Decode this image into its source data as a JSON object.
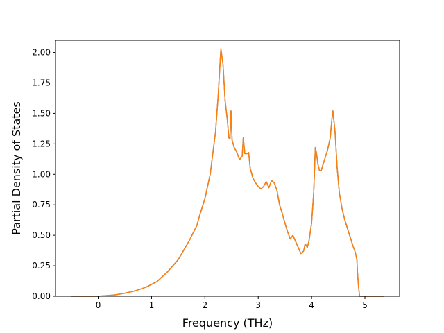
{
  "chart_data": {
    "type": "line",
    "title": "",
    "xlabel": "Frequency (THz)",
    "ylabel": "Partial Density of States",
    "xlim": [
      -0.8,
      5.65
    ],
    "ylim": [
      0,
      2.1
    ],
    "x_ticks": [
      0,
      1,
      2,
      3,
      4,
      5
    ],
    "x_tick_labels": [
      "0",
      "1",
      "2",
      "3",
      "4",
      "5"
    ],
    "y_ticks": [
      0,
      0.25,
      0.5,
      0.75,
      1.0,
      1.25,
      1.5,
      1.75,
      2.0
    ],
    "y_tick_labels": [
      "0.00",
      "0.25",
      "0.50",
      "0.75",
      "1.00",
      "1.25",
      "1.50",
      "1.75",
      "2.00"
    ],
    "grid": false,
    "legend": "none",
    "series": [
      {
        "color": "#1f77b4",
        "x": [
          -0.5,
          0.0,
          0.3,
          0.5,
          0.7,
          0.9,
          1.1,
          1.3,
          1.5,
          1.7,
          1.85,
          1.9,
          2.0,
          2.1,
          2.2,
          2.25,
          2.3,
          2.34,
          2.38,
          2.42,
          2.45,
          2.47,
          2.49,
          2.51,
          2.55,
          2.6,
          2.65,
          2.7,
          2.72,
          2.75,
          2.8,
          2.82,
          2.85,
          2.9,
          2.95,
          3.0,
          3.05,
          3.1,
          3.15,
          3.2,
          3.25,
          3.3,
          3.35,
          3.4,
          3.45,
          3.5,
          3.55,
          3.6,
          3.65,
          3.7,
          3.75,
          3.8,
          3.85,
          3.88,
          3.92,
          3.95,
          4.0,
          4.04,
          4.07,
          4.09,
          4.12,
          4.15,
          4.18,
          4.2,
          4.25,
          4.3,
          4.35,
          4.38,
          4.4,
          4.44,
          4.48,
          4.52,
          4.57,
          4.62,
          4.67,
          4.72,
          4.77,
          4.82,
          4.85,
          4.86,
          4.88,
          4.9,
          5.0,
          5.2,
          5.35
        ],
        "y": [
          0,
          0.0,
          0.01,
          0.025,
          0.045,
          0.075,
          0.12,
          0.2,
          0.3,
          0.45,
          0.58,
          0.66,
          0.8,
          1.0,
          1.35,
          1.65,
          2.03,
          1.9,
          1.6,
          1.45,
          1.3,
          1.29,
          1.52,
          1.28,
          1.22,
          1.18,
          1.12,
          1.15,
          1.3,
          1.17,
          1.17,
          1.18,
          1.05,
          0.97,
          0.93,
          0.9,
          0.88,
          0.9,
          0.94,
          0.89,
          0.95,
          0.93,
          0.87,
          0.75,
          0.68,
          0.6,
          0.53,
          0.47,
          0.5,
          0.45,
          0.4,
          0.35,
          0.37,
          0.43,
          0.4,
          0.45,
          0.6,
          0.85,
          1.22,
          1.18,
          1.08,
          1.03,
          1.03,
          1.06,
          1.13,
          1.2,
          1.3,
          1.45,
          1.52,
          1.35,
          1.05,
          0.85,
          0.72,
          0.63,
          0.56,
          0.49,
          0.42,
          0.36,
          0.3,
          0.2,
          0.08,
          0.0,
          0,
          0,
          0
        ]
      },
      {
        "color": "#ff7f0e",
        "x": [
          -0.5,
          0.0,
          0.3,
          0.5,
          0.7,
          0.9,
          1.1,
          1.3,
          1.5,
          1.7,
          1.85,
          1.9,
          2.0,
          2.1,
          2.2,
          2.25,
          2.3,
          2.34,
          2.38,
          2.42,
          2.45,
          2.47,
          2.49,
          2.51,
          2.55,
          2.6,
          2.65,
          2.7,
          2.72,
          2.75,
          2.8,
          2.82,
          2.85,
          2.9,
          2.95,
          3.0,
          3.05,
          3.1,
          3.15,
          3.2,
          3.25,
          3.3,
          3.35,
          3.4,
          3.45,
          3.5,
          3.55,
          3.6,
          3.65,
          3.7,
          3.75,
          3.8,
          3.85,
          3.88,
          3.92,
          3.95,
          4.0,
          4.04,
          4.07,
          4.09,
          4.12,
          4.15,
          4.18,
          4.2,
          4.25,
          4.3,
          4.35,
          4.38,
          4.4,
          4.44,
          4.48,
          4.52,
          4.57,
          4.62,
          4.67,
          4.72,
          4.77,
          4.82,
          4.85,
          4.86,
          4.88,
          4.9,
          5.0,
          5.2,
          5.35
        ],
        "y": [
          0,
          0.0,
          0.01,
          0.025,
          0.045,
          0.075,
          0.12,
          0.2,
          0.3,
          0.45,
          0.58,
          0.66,
          0.8,
          1.0,
          1.35,
          1.65,
          2.03,
          1.9,
          1.6,
          1.45,
          1.3,
          1.29,
          1.52,
          1.28,
          1.22,
          1.18,
          1.12,
          1.15,
          1.3,
          1.17,
          1.17,
          1.18,
          1.05,
          0.97,
          0.93,
          0.9,
          0.88,
          0.9,
          0.94,
          0.89,
          0.95,
          0.93,
          0.87,
          0.75,
          0.68,
          0.6,
          0.53,
          0.47,
          0.5,
          0.45,
          0.4,
          0.35,
          0.37,
          0.43,
          0.4,
          0.45,
          0.6,
          0.85,
          1.22,
          1.18,
          1.08,
          1.03,
          1.03,
          1.06,
          1.13,
          1.2,
          1.3,
          1.45,
          1.52,
          1.35,
          1.05,
          0.85,
          0.72,
          0.63,
          0.56,
          0.49,
          0.42,
          0.36,
          0.3,
          0.2,
          0.08,
          0.0,
          0,
          0,
          0
        ]
      }
    ]
  }
}
